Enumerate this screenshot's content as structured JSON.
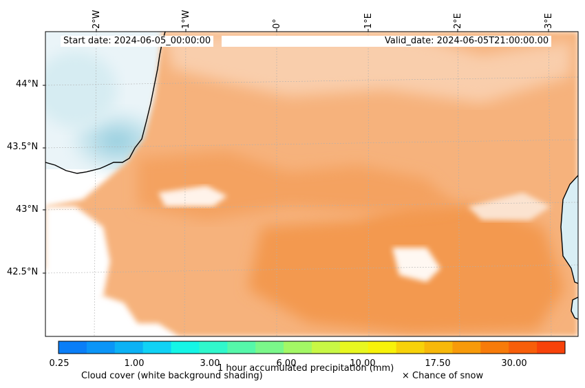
{
  "header": {
    "start_date": "Start date: 2024-06-05_00:00:00",
    "valid_date": "Valid_date: 2024-06-05T21:00:00.00"
  },
  "axes": {
    "lon_labels": [
      "2°W",
      "1°W",
      "0°",
      "1°E",
      "2°E",
      "3°E"
    ],
    "lat_labels": [
      "44°N",
      "43.5°N",
      "43°N",
      "42.5°N"
    ]
  },
  "colorbar": {
    "colors": [
      "#0a7ef7",
      "#0b95f7",
      "#0cb2f5",
      "#10d2f5",
      "#15f5e6",
      "#30f7cc",
      "#55f7aa",
      "#7af78a",
      "#a3f765",
      "#c8f745",
      "#e8f720",
      "#f7f20a",
      "#f7d20a",
      "#f7b80a",
      "#f79a0a",
      "#f77b0a",
      "#f75e0a",
      "#f7420a"
    ],
    "tick_labels": [
      "0.25",
      "1.00",
      "3.00",
      "6.00",
      "10.00",
      "17.50",
      "30.00"
    ],
    "label": "1 hour accumulated precipitation (mm)",
    "cloud_note": "Cloud cover (white background shading)",
    "snow_note": "× Chance of snow"
  },
  "legend_colors": {
    "cloud_shading": "#f4a261",
    "clear_sea": "#c7e6ef",
    "coastline": "#000000"
  }
}
